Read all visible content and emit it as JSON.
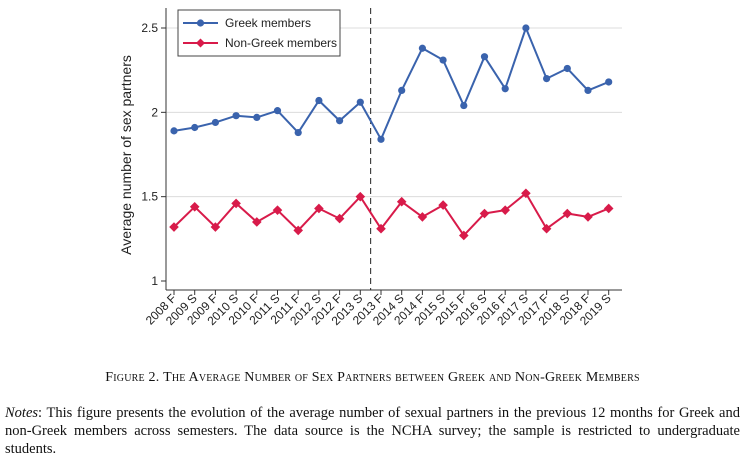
{
  "chart_data": {
    "type": "line",
    "ylabel": "Average number of sex partners",
    "xlabel": "",
    "ylim": [
      1,
      2.6
    ],
    "yticks": [
      "1",
      "1.5",
      "2",
      "2.5"
    ],
    "ytick_values": [
      1,
      1.5,
      2,
      2.5
    ],
    "categories": [
      "2008 F",
      "2009 S",
      "2009 F",
      "2010 S",
      "2010 F",
      "2011 S",
      "2011 F",
      "2012 S",
      "2012 F",
      "2013 S",
      "2013 F",
      "2014 S",
      "2014 F",
      "2015 S",
      "2015 F",
      "2016 S",
      "2016 F",
      "2017 S",
      "2017 F",
      "2018 S",
      "2018 F",
      "2019 S"
    ],
    "vertical_marker_between": [
      "2013 S",
      "2013 F"
    ],
    "grid": "horizontal",
    "legend_position": "top-left",
    "series": [
      {
        "name": "Greek members",
        "color": "#3a63ad",
        "marker": "circle",
        "values": [
          1.89,
          1.91,
          1.94,
          1.98,
          1.97,
          2.01,
          1.88,
          2.07,
          1.95,
          2.06,
          1.84,
          2.13,
          2.38,
          2.31,
          2.04,
          2.33,
          2.14,
          2.5,
          2.2,
          2.26,
          2.13,
          2.18
        ]
      },
      {
        "name": "Non-Greek members",
        "color": "#d81b4a",
        "marker": "diamond",
        "values": [
          1.32,
          1.44,
          1.32,
          1.46,
          1.35,
          1.42,
          1.3,
          1.43,
          1.37,
          1.5,
          1.31,
          1.47,
          1.38,
          1.45,
          1.27,
          1.4,
          1.42,
          1.52,
          1.31,
          1.4,
          1.38,
          1.43
        ]
      }
    ]
  },
  "caption": {
    "prefix": "Figure 2.",
    "text": "The Average Number of Sex Partners between Greek and Non-Greek Members"
  },
  "notes": {
    "label": "Notes",
    "text": ": This figure presents the evolution of the average number of sexual partners in the previous 12 months for Greek and non-Greek members across semesters. The data source is the NCHA survey; the sample is restricted to undergraduate students."
  }
}
